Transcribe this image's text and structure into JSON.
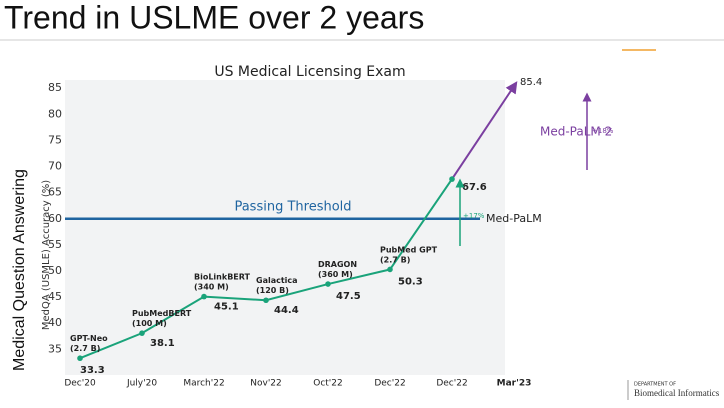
{
  "slide_title": "Trend in USLME over 2 years",
  "chart_data": {
    "type": "line",
    "title": "US Medical Licensing Exam",
    "outer_ylabel": "Medical Question Answering",
    "ylabel": "MedQA (USMLE) Accuracy (%)",
    "categories": [
      "Dec'20",
      "July'20",
      "March'22",
      "Nov'22",
      "Oct'22",
      "Dec'22",
      "Dec'22",
      "Mar'23"
    ],
    "series": [
      {
        "color": "#1aa37a",
        "values": [
          33.3,
          38.1,
          45.1,
          44.4,
          47.5,
          50.3,
          67.6,
          85.4
        ]
      }
    ],
    "last_segment_color": "#7b3fa0",
    "point_labels": [
      [
        "GPT-Neo",
        "(2.7 B)"
      ],
      [
        "PubMedBERT",
        "(100 M)"
      ],
      [
        "BioLinkBERT",
        "(340 M)"
      ],
      [
        "Galactica",
        "(120 B)"
      ],
      [
        "DRAGON",
        "(360 M)"
      ],
      [
        "PubMed GPT",
        "(2.7 B)"
      ],
      null,
      null
    ],
    "ylim": [
      32,
      86
    ],
    "yticks": [
      35,
      40,
      45,
      50,
      55,
      60,
      65,
      70,
      75,
      80,
      85
    ],
    "threshold": {
      "value": 60,
      "label": "Passing Threshold",
      "color": "#1f64a0"
    },
    "annotations": [
      {
        "text": "Med-PaLM",
        "color": "#222222"
      },
      {
        "text": "Med-PaLM 2",
        "color": "#7b3fa0"
      },
      {
        "text": "+17%",
        "color": "#1aa37a"
      },
      {
        "text": "+18%",
        "color": "#7b3fa0"
      }
    ]
  },
  "footer": {
    "line1": "DEPARTMENT OF",
    "line2": "Biomedical Informatics"
  }
}
